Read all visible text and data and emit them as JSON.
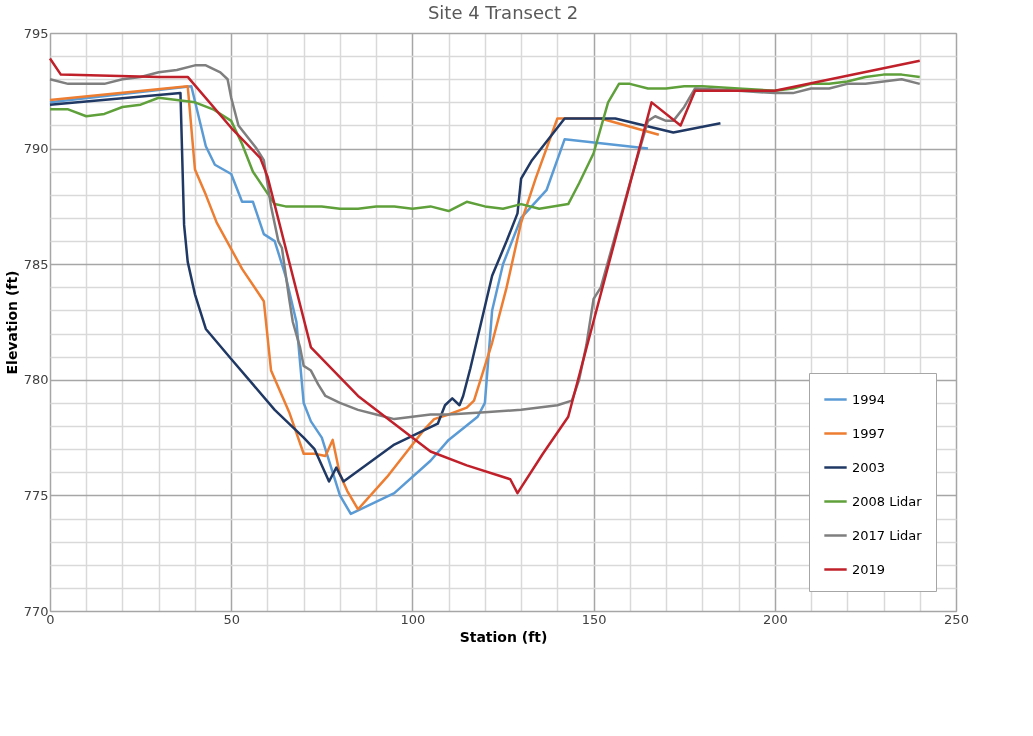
{
  "chart_data": {
    "type": "line",
    "title": "Site 4 Transect 2",
    "xlabel": "Station (ft)",
    "ylabel": "Elevation (ft)",
    "xlim": [
      0,
      250
    ],
    "ylim": [
      770,
      795
    ],
    "xticks": [
      0,
      {
        "value": 10,
        "label": null
      },
      {
        "value": 20,
        "label": null
      },
      {
        "value": 30,
        "label": null
      },
      {
        "value": 40,
        "label": null
      },
      50,
      {
        "value": 60,
        "label": null
      },
      {
        "value": 70,
        "label": null
      },
      {
        "value": 80,
        "label": null
      },
      {
        "value": 90,
        "label": null
      },
      100,
      {
        "value": 110,
        "label": null
      },
      {
        "value": 120,
        "label": null
      },
      {
        "value": 130,
        "label": null
      },
      {
        "value": 140,
        "label": null
      },
      150,
      {
        "value": 160,
        "label": null
      },
      {
        "value": 170,
        "label": null
      },
      {
        "value": 180,
        "label": null
      },
      {
        "value": 190,
        "label": null
      },
      200,
      {
        "value": 210,
        "label": null
      },
      {
        "value": 220,
        "label": null
      },
      {
        "value": 230,
        "label": null
      },
      {
        "value": 240,
        "label": null
      },
      250
    ],
    "yticks": [
      770,
      {
        "value": 771,
        "label": null
      },
      {
        "value": 772,
        "label": null
      },
      {
        "value": 773,
        "label": null
      },
      {
        "value": 774,
        "label": null
      },
      775,
      {
        "value": 776,
        "label": null
      },
      {
        "value": 777,
        "label": null
      },
      {
        "value": 778,
        "label": null
      },
      {
        "value": 779,
        "label": null
      },
      780,
      {
        "value": 781,
        "label": null
      },
      {
        "value": 782,
        "label": null
      },
      {
        "value": 783,
        "label": null
      },
      {
        "value": 784,
        "label": null
      },
      785,
      {
        "value": 786,
        "label": null
      },
      {
        "value": 787,
        "label": null
      },
      {
        "value": 788,
        "label": null
      },
      {
        "value": 789,
        "label": null
      },
      790,
      {
        "value": 791,
        "label": null
      },
      {
        "value": 792,
        "label": null
      },
      {
        "value": 793,
        "label": null
      },
      {
        "value": 794,
        "label": null
      },
      795
    ],
    "grid": true,
    "legend": "bottom right",
    "marker": "none",
    "line_style": "solid",
    "series": [
      {
        "name": "1994",
        "color": "#5b9bd5",
        "x": [
          0,
          39,
          43,
          45.5,
          50,
          53,
          56,
          59,
          62,
          65,
          68,
          70,
          72,
          75,
          78,
          80,
          83,
          95,
          105,
          110,
          118,
          120,
          122,
          125,
          130,
          137,
          142,
          165
        ],
        "values": [
          792.0,
          792.7,
          790.1,
          789.3,
          788.9,
          787.7,
          787.7,
          786.3,
          786.0,
          784.5,
          782.5,
          779.0,
          778.2,
          777.5,
          776.0,
          775.0,
          774.2,
          775.1,
          776.5,
          777.4,
          778.4,
          779.0,
          783.0,
          785.0,
          787.0,
          788.2,
          790.4,
          790.0
        ]
      },
      {
        "name": "1997",
        "color": "#ed7d31",
        "x": [
          0,
          38,
          40,
          43,
          46,
          53,
          59,
          61,
          66,
          70,
          73,
          76,
          78,
          80,
          82,
          85,
          93,
          103,
          106,
          110,
          115,
          117,
          122,
          126,
          130,
          134,
          140,
          152,
          168
        ],
        "values": [
          792.1,
          792.7,
          789.1,
          788.0,
          786.8,
          784.8,
          783.4,
          780.4,
          778.6,
          776.8,
          776.8,
          776.7,
          777.4,
          775.9,
          775.2,
          774.4,
          775.8,
          777.8,
          778.3,
          778.5,
          778.8,
          779.1,
          781.6,
          784.0,
          786.8,
          788.7,
          791.3,
          791.3,
          790.6
        ]
      },
      {
        "name": "2003",
        "color": "#1f3864",
        "x": [
          0,
          36,
          37,
          38,
          40,
          43,
          50,
          56,
          62,
          70,
          73,
          77,
          79,
          81,
          95,
          103,
          107,
          109,
          111,
          113,
          114,
          116,
          122,
          126,
          129,
          130,
          133,
          142,
          152,
          156,
          172,
          185
        ],
        "values": [
          791.9,
          792.4,
          786.7,
          785.1,
          783.7,
          782.2,
          780.9,
          779.8,
          778.7,
          777.5,
          777.0,
          775.6,
          776.2,
          775.6,
          777.2,
          777.8,
          778.1,
          778.9,
          779.2,
          778.9,
          779.3,
          780.5,
          784.5,
          786.0,
          787.2,
          788.7,
          789.5,
          791.3,
          791.3,
          791.3,
          790.7,
          791.1
        ]
      },
      {
        "name": "2008 Lidar",
        "color": "#5fa03b",
        "x": [
          0,
          5,
          10,
          15,
          20,
          25,
          30,
          35,
          40,
          45,
          50,
          53,
          56,
          62,
          65,
          70,
          75,
          80,
          85,
          90,
          95,
          100,
          105,
          110,
          115,
          120,
          125,
          130,
          135,
          143,
          146,
          150,
          154,
          157,
          160,
          165,
          170,
          175,
          180,
          190,
          200,
          205,
          210,
          215,
          220,
          225,
          230,
          235,
          240
        ],
        "values": [
          791.7,
          791.7,
          791.4,
          791.5,
          791.8,
          791.9,
          792.2,
          792.1,
          792.0,
          791.7,
          791.2,
          790.2,
          789.0,
          787.6,
          787.5,
          787.5,
          787.5,
          787.4,
          787.4,
          787.5,
          787.5,
          787.4,
          787.5,
          787.3,
          787.7,
          787.5,
          787.4,
          787.6,
          787.4,
          787.6,
          788.5,
          789.8,
          792.0,
          792.8,
          792.8,
          792.6,
          792.6,
          792.7,
          792.7,
          792.6,
          792.5,
          792.6,
          792.8,
          792.8,
          792.9,
          793.1,
          793.2,
          793.2,
          793.1
        ]
      },
      {
        "name": "2017 Lidar",
        "color": "#7f7f7f",
        "x": [
          0,
          5,
          10,
          15,
          20,
          25,
          30,
          35,
          40,
          43,
          47,
          49,
          50,
          52,
          57,
          59,
          61,
          63,
          64,
          66,
          67,
          69,
          70,
          72,
          74,
          76,
          80,
          85,
          90,
          95,
          100,
          105,
          110,
          120,
          130,
          140,
          144,
          146,
          148,
          150,
          152,
          160,
          165,
          167,
          170,
          172,
          175,
          178,
          190,
          200,
          205,
          210,
          215,
          220,
          225,
          230,
          235,
          240
        ],
        "values": [
          793.0,
          792.8,
          792.8,
          792.8,
          793.0,
          793.1,
          793.3,
          793.4,
          793.6,
          793.6,
          793.3,
          793.0,
          792.2,
          791.0,
          790.0,
          789.5,
          787.5,
          786.0,
          785.7,
          783.5,
          782.5,
          781.4,
          780.6,
          780.4,
          779.8,
          779.3,
          779.0,
          778.7,
          778.5,
          778.3,
          778.4,
          778.5,
          778.5,
          778.6,
          778.7,
          778.9,
          779.1,
          780.0,
          781.5,
          783.5,
          784.0,
          788.5,
          791.2,
          791.4,
          791.2,
          791.2,
          791.8,
          792.6,
          792.5,
          792.4,
          792.4,
          792.6,
          792.6,
          792.8,
          792.8,
          792.9,
          793.0,
          792.8
        ]
      },
      {
        "name": "2019",
        "color": "#c0202a",
        "x": [
          0,
          3,
          30,
          38,
          50,
          58,
          60,
          72,
          85,
          105,
          115,
          127,
          129,
          136,
          143,
          166,
          174,
          178,
          200,
          240
        ],
        "values": [
          793.9,
          793.2,
          793.1,
          793.1,
          790.9,
          789.6,
          788.8,
          781.4,
          779.3,
          776.9,
          776.3,
          775.7,
          775.1,
          776.8,
          778.4,
          792.0,
          791.0,
          792.5,
          792.5,
          793.8
        ]
      }
    ]
  }
}
